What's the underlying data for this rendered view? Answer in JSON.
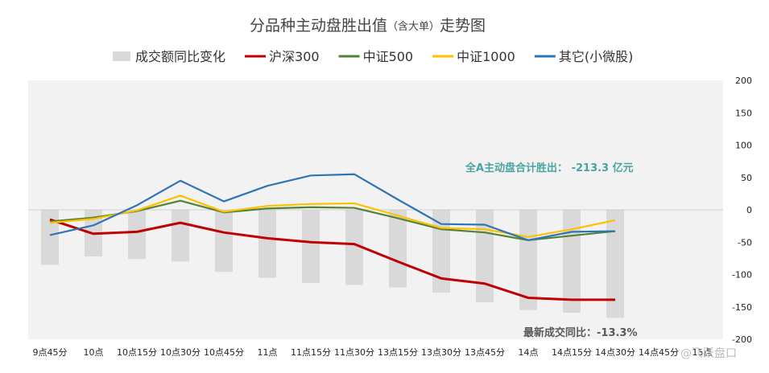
{
  "chart_data": {
    "type": "bar+line",
    "title_main": "分品种主动盘胜出值",
    "title_paren": "（含大单）",
    "title_tail": "走势图",
    "categories": [
      "9点45分",
      "10点",
      "10点15分",
      "10点30分",
      "10点45分",
      "11点",
      "11点15分",
      "11点30分",
      "13点15分",
      "13点30分",
      "13点45分",
      "14点",
      "14点15分",
      "14点30分",
      "14点45分",
      "15点"
    ],
    "ylim": [
      -200,
      200
    ],
    "yticks": [
      200,
      150,
      100,
      50,
      0,
      -50,
      -100,
      -150,
      -200
    ],
    "grid": false,
    "legend_position": "top",
    "bar_series": {
      "name": "成交额同比变化",
      "color": "#d9d9d9",
      "values": [
        -85,
        -72,
        -76,
        -80,
        -96,
        -105,
        -113,
        -116,
        -120,
        -128,
        -143,
        -155,
        -159,
        -167,
        null,
        null
      ]
    },
    "line_series": [
      {
        "name": "沪深300",
        "color": "#c00000",
        "values": [
          -15,
          -37,
          -34,
          -20,
          -35,
          -44,
          -50,
          -53,
          -80,
          -106,
          -114,
          -136,
          -139,
          -139,
          null,
          null
        ]
      },
      {
        "name": "中证500",
        "color": "#548235",
        "values": [
          -18,
          -12,
          -2,
          14,
          -4,
          2,
          4,
          3,
          -13,
          -30,
          -35,
          -47,
          -40,
          -33,
          null,
          null
        ]
      },
      {
        "name": "中证1000",
        "color": "#ffc000",
        "values": [
          -20,
          -14,
          -1,
          22,
          -3,
          6,
          9,
          10,
          -9,
          -28,
          -30,
          -42,
          -30,
          -16,
          null,
          null
        ]
      },
      {
        "name": "其它(小微股)",
        "color": "#2e75b6",
        "values": [
          -39,
          -24,
          7,
          45,
          13,
          37,
          53,
          55,
          16,
          -22,
          -23,
          -47,
          -34,
          -33,
          null,
          null
        ]
      }
    ],
    "annotations": [
      {
        "text": "全A主动盘合计胜出：  -213.3  亿元",
        "color": "#4aa3a3"
      },
      {
        "text": "最新成交同比：-13.3%",
        "color": "#595959"
      }
    ]
  },
  "watermark": "@飞跃盘口"
}
